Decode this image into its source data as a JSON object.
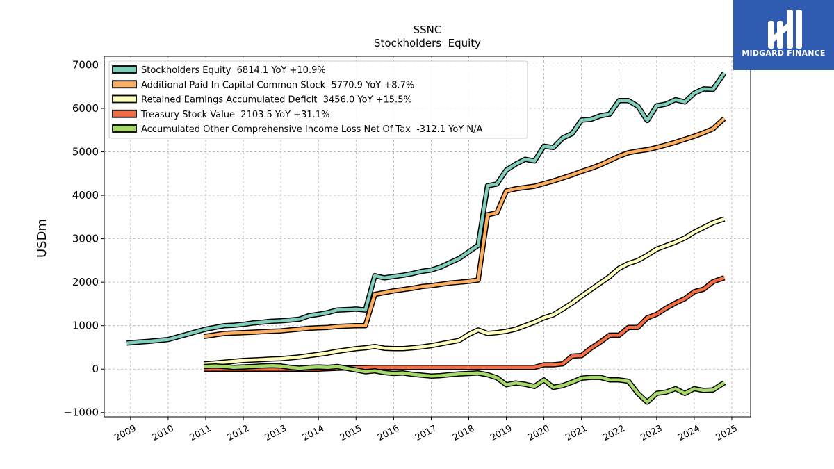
{
  "logo": {
    "text": "MIDGARD FINANCE",
    "background": "#2f5bb0"
  },
  "chart_data": {
    "type": "line",
    "title": "SSNC",
    "subtitle": "Stockholders  Equity",
    "ylabel": "USDm",
    "xlabel": "",
    "ylim": [
      -1100,
      7200
    ],
    "xlim": [
      2008.3,
      2025.5
    ],
    "yticks": [
      -1000,
      0,
      1000,
      2000,
      3000,
      4000,
      5000,
      6000,
      7000
    ],
    "ytick_labels": [
      "−1000",
      "0",
      "1000",
      "2000",
      "3000",
      "4000",
      "5000",
      "6000",
      "7000"
    ],
    "xticks": [
      2009,
      2010,
      2011,
      2012,
      2013,
      2014,
      2015,
      2016,
      2017,
      2018,
      2019,
      2020,
      2021,
      2022,
      2023,
      2024,
      2025
    ],
    "xtick_labels": [
      "2009",
      "2010",
      "2011",
      "2012",
      "2013",
      "2014",
      "2015",
      "2016",
      "2017",
      "2018",
      "2019",
      "2020",
      "2021",
      "2022",
      "2023",
      "2024",
      "2025"
    ],
    "grid": true,
    "legend_position": "top-left",
    "series": [
      {
        "name": "Stockholders Equity",
        "legend_label": "Stockholders Equity  6814.1 YoY +10.9%",
        "color": "#7fcdbb",
        "points": [
          [
            2008.9,
            600
          ],
          [
            2009.2,
            620
          ],
          [
            2009.5,
            640
          ],
          [
            2009.75,
            660
          ],
          [
            2010.0,
            680
          ],
          [
            2010.25,
            740
          ],
          [
            2010.5,
            800
          ],
          [
            2010.75,
            860
          ],
          [
            2011.0,
            920
          ],
          [
            2011.25,
            960
          ],
          [
            2011.5,
            1000
          ],
          [
            2011.75,
            1010
          ],
          [
            2012.0,
            1030
          ],
          [
            2012.25,
            1060
          ],
          [
            2012.5,
            1080
          ],
          [
            2012.75,
            1100
          ],
          [
            2013.0,
            1110
          ],
          [
            2013.25,
            1130
          ],
          [
            2013.5,
            1150
          ],
          [
            2013.75,
            1230
          ],
          [
            2014.0,
            1260
          ],
          [
            2014.25,
            1300
          ],
          [
            2014.5,
            1360
          ],
          [
            2014.75,
            1370
          ],
          [
            2015.0,
            1380
          ],
          [
            2015.25,
            1360
          ],
          [
            2015.5,
            2150
          ],
          [
            2015.75,
            2100
          ],
          [
            2016.0,
            2130
          ],
          [
            2016.25,
            2160
          ],
          [
            2016.5,
            2200
          ],
          [
            2016.75,
            2250
          ],
          [
            2017.0,
            2280
          ],
          [
            2017.25,
            2350
          ],
          [
            2017.5,
            2450
          ],
          [
            2017.75,
            2550
          ],
          [
            2018.0,
            2700
          ],
          [
            2018.25,
            2850
          ],
          [
            2018.5,
            4220
          ],
          [
            2018.75,
            4260
          ],
          [
            2019.0,
            4580
          ],
          [
            2019.25,
            4720
          ],
          [
            2019.5,
            4830
          ],
          [
            2019.75,
            4790
          ],
          [
            2020.0,
            5130
          ],
          [
            2020.25,
            5100
          ],
          [
            2020.5,
            5320
          ],
          [
            2020.75,
            5420
          ],
          [
            2021.0,
            5730
          ],
          [
            2021.25,
            5750
          ],
          [
            2021.5,
            5830
          ],
          [
            2021.75,
            5870
          ],
          [
            2022.0,
            6180
          ],
          [
            2022.25,
            6180
          ],
          [
            2022.5,
            6050
          ],
          [
            2022.75,
            5720
          ],
          [
            2023.0,
            6060
          ],
          [
            2023.25,
            6100
          ],
          [
            2023.5,
            6200
          ],
          [
            2023.75,
            6150
          ],
          [
            2024.0,
            6350
          ],
          [
            2024.25,
            6450
          ],
          [
            2024.5,
            6440
          ],
          [
            2024.8,
            6814.1
          ]
        ]
      },
      {
        "name": "Additional Paid In Capital Common Stock",
        "legend_label": "Additional Paid In Capital Common Stock  5770.9 YoY +8.7%",
        "color": "#fdae61",
        "points": [
          [
            2010.95,
            750
          ],
          [
            2011.25,
            790
          ],
          [
            2011.5,
            820
          ],
          [
            2011.75,
            830
          ],
          [
            2012.0,
            840
          ],
          [
            2012.25,
            850
          ],
          [
            2012.5,
            860
          ],
          [
            2012.75,
            870
          ],
          [
            2013.0,
            880
          ],
          [
            2013.25,
            900
          ],
          [
            2013.5,
            920
          ],
          [
            2013.75,
            940
          ],
          [
            2014.0,
            950
          ],
          [
            2014.25,
            960
          ],
          [
            2014.5,
            980
          ],
          [
            2014.75,
            990
          ],
          [
            2015.0,
            1000
          ],
          [
            2015.25,
            1000
          ],
          [
            2015.5,
            1720
          ],
          [
            2015.75,
            1760
          ],
          [
            2016.0,
            1800
          ],
          [
            2016.25,
            1830
          ],
          [
            2016.5,
            1860
          ],
          [
            2016.75,
            1900
          ],
          [
            2017.0,
            1920
          ],
          [
            2017.25,
            1950
          ],
          [
            2017.5,
            1980
          ],
          [
            2017.75,
            2000
          ],
          [
            2018.0,
            2020
          ],
          [
            2018.25,
            2050
          ],
          [
            2018.5,
            3550
          ],
          [
            2018.75,
            3600
          ],
          [
            2019.0,
            4100
          ],
          [
            2019.25,
            4150
          ],
          [
            2019.5,
            4180
          ],
          [
            2019.75,
            4210
          ],
          [
            2020.0,
            4270
          ],
          [
            2020.25,
            4330
          ],
          [
            2020.5,
            4400
          ],
          [
            2020.75,
            4470
          ],
          [
            2021.0,
            4550
          ],
          [
            2021.25,
            4620
          ],
          [
            2021.5,
            4700
          ],
          [
            2021.75,
            4800
          ],
          [
            2022.0,
            4900
          ],
          [
            2022.25,
            4980
          ],
          [
            2022.5,
            5020
          ],
          [
            2022.75,
            5050
          ],
          [
            2023.0,
            5100
          ],
          [
            2023.25,
            5160
          ],
          [
            2023.5,
            5220
          ],
          [
            2023.75,
            5290
          ],
          [
            2024.0,
            5360
          ],
          [
            2024.25,
            5440
          ],
          [
            2024.5,
            5530
          ],
          [
            2024.8,
            5770.9
          ]
        ]
      },
      {
        "name": "Retained Earnings Accumulated Deficit",
        "legend_label": "Retained Earnings Accumulated Deficit  3456.0 YoY +15.5%",
        "color": "#ffffbf",
        "points": [
          [
            2010.95,
            120
          ],
          [
            2011.25,
            140
          ],
          [
            2011.5,
            160
          ],
          [
            2011.75,
            180
          ],
          [
            2012.0,
            200
          ],
          [
            2012.25,
            210
          ],
          [
            2012.5,
            220
          ],
          [
            2012.75,
            230
          ],
          [
            2013.0,
            240
          ],
          [
            2013.25,
            260
          ],
          [
            2013.5,
            280
          ],
          [
            2013.75,
            310
          ],
          [
            2014.0,
            340
          ],
          [
            2014.25,
            370
          ],
          [
            2014.5,
            410
          ],
          [
            2014.75,
            440
          ],
          [
            2015.0,
            470
          ],
          [
            2015.25,
            490
          ],
          [
            2015.5,
            520
          ],
          [
            2015.75,
            480
          ],
          [
            2016.0,
            470
          ],
          [
            2016.25,
            470
          ],
          [
            2016.5,
            490
          ],
          [
            2016.75,
            510
          ],
          [
            2017.0,
            540
          ],
          [
            2017.25,
            580
          ],
          [
            2017.5,
            620
          ],
          [
            2017.75,
            660
          ],
          [
            2018.0,
            800
          ],
          [
            2018.25,
            900
          ],
          [
            2018.5,
            820
          ],
          [
            2018.75,
            840
          ],
          [
            2019.0,
            870
          ],
          [
            2019.25,
            920
          ],
          [
            2019.5,
            1000
          ],
          [
            2019.75,
            1080
          ],
          [
            2020.0,
            1180
          ],
          [
            2020.25,
            1250
          ],
          [
            2020.5,
            1380
          ],
          [
            2020.75,
            1520
          ],
          [
            2021.0,
            1680
          ],
          [
            2021.25,
            1830
          ],
          [
            2021.5,
            1980
          ],
          [
            2021.75,
            2130
          ],
          [
            2022.0,
            2320
          ],
          [
            2022.25,
            2430
          ],
          [
            2022.5,
            2500
          ],
          [
            2022.75,
            2620
          ],
          [
            2023.0,
            2760
          ],
          [
            2023.25,
            2840
          ],
          [
            2023.5,
            2920
          ],
          [
            2023.75,
            3020
          ],
          [
            2024.0,
            3150
          ],
          [
            2024.25,
            3260
          ],
          [
            2024.5,
            3370
          ],
          [
            2024.8,
            3456.0
          ]
        ]
      },
      {
        "name": "Treasury Stock Value",
        "legend_label": "Treasury Stock Value  2103.5 YoY +31.1%",
        "color": "#f46d43",
        "points": [
          [
            2010.95,
            0
          ],
          [
            2011.5,
            0
          ],
          [
            2012.0,
            0
          ],
          [
            2012.5,
            0
          ],
          [
            2013.0,
            0
          ],
          [
            2013.5,
            0
          ],
          [
            2014.0,
            0
          ],
          [
            2014.5,
            20
          ],
          [
            2015.0,
            30
          ],
          [
            2015.5,
            40
          ],
          [
            2016.0,
            40
          ],
          [
            2016.5,
            40
          ],
          [
            2017.0,
            40
          ],
          [
            2017.5,
            40
          ],
          [
            2018.0,
            40
          ],
          [
            2018.5,
            40
          ],
          [
            2019.0,
            40
          ],
          [
            2019.25,
            40
          ],
          [
            2019.5,
            40
          ],
          [
            2019.75,
            40
          ],
          [
            2020.0,
            100
          ],
          [
            2020.25,
            100
          ],
          [
            2020.5,
            120
          ],
          [
            2020.75,
            300
          ],
          [
            2021.0,
            310
          ],
          [
            2021.25,
            480
          ],
          [
            2021.5,
            620
          ],
          [
            2021.75,
            780
          ],
          [
            2022.0,
            780
          ],
          [
            2022.25,
            960
          ],
          [
            2022.5,
            960
          ],
          [
            2022.75,
            1180
          ],
          [
            2023.0,
            1260
          ],
          [
            2023.25,
            1400
          ],
          [
            2023.5,
            1520
          ],
          [
            2023.75,
            1620
          ],
          [
            2024.0,
            1780
          ],
          [
            2024.25,
            1840
          ],
          [
            2024.5,
            2010
          ],
          [
            2024.8,
            2103.5
          ]
        ]
      },
      {
        "name": "Accumulated Other Comprehensive Income Loss Net Of Tax",
        "legend_label": "Accumulated Other Comprehensive Income Loss Net Of Tax  -312.1 YoY N/A",
        "color": "#a6d96a",
        "points": [
          [
            2010.95,
            60
          ],
          [
            2011.25,
            70
          ],
          [
            2011.5,
            60
          ],
          [
            2011.75,
            40
          ],
          [
            2012.0,
            50
          ],
          [
            2012.25,
            60
          ],
          [
            2012.5,
            70
          ],
          [
            2012.75,
            80
          ],
          [
            2013.0,
            70
          ],
          [
            2013.25,
            40
          ],
          [
            2013.5,
            20
          ],
          [
            2013.75,
            40
          ],
          [
            2014.0,
            50
          ],
          [
            2014.25,
            40
          ],
          [
            2014.5,
            60
          ],
          [
            2014.75,
            20
          ],
          [
            2015.0,
            -20
          ],
          [
            2015.25,
            -60
          ],
          [
            2015.5,
            -40
          ],
          [
            2015.75,
            -80
          ],
          [
            2016.0,
            -100
          ],
          [
            2016.25,
            -90
          ],
          [
            2016.5,
            -120
          ],
          [
            2016.75,
            -140
          ],
          [
            2017.0,
            -160
          ],
          [
            2017.25,
            -150
          ],
          [
            2017.5,
            -130
          ],
          [
            2017.75,
            -110
          ],
          [
            2018.0,
            -100
          ],
          [
            2018.25,
            -90
          ],
          [
            2018.5,
            -130
          ],
          [
            2018.75,
            -200
          ],
          [
            2019.0,
            -360
          ],
          [
            2019.25,
            -320
          ],
          [
            2019.5,
            -350
          ],
          [
            2019.75,
            -400
          ],
          [
            2020.0,
            -250
          ],
          [
            2020.25,
            -420
          ],
          [
            2020.5,
            -380
          ],
          [
            2020.75,
            -300
          ],
          [
            2021.0,
            -210
          ],
          [
            2021.25,
            -190
          ],
          [
            2021.5,
            -190
          ],
          [
            2021.75,
            -250
          ],
          [
            2022.0,
            -250
          ],
          [
            2022.25,
            -280
          ],
          [
            2022.5,
            -560
          ],
          [
            2022.75,
            -760
          ],
          [
            2023.0,
            -560
          ],
          [
            2023.25,
            -530
          ],
          [
            2023.5,
            -450
          ],
          [
            2023.75,
            -560
          ],
          [
            2024.0,
            -450
          ],
          [
            2024.25,
            -490
          ],
          [
            2024.5,
            -480
          ],
          [
            2024.8,
            -312.1
          ]
        ]
      }
    ]
  }
}
